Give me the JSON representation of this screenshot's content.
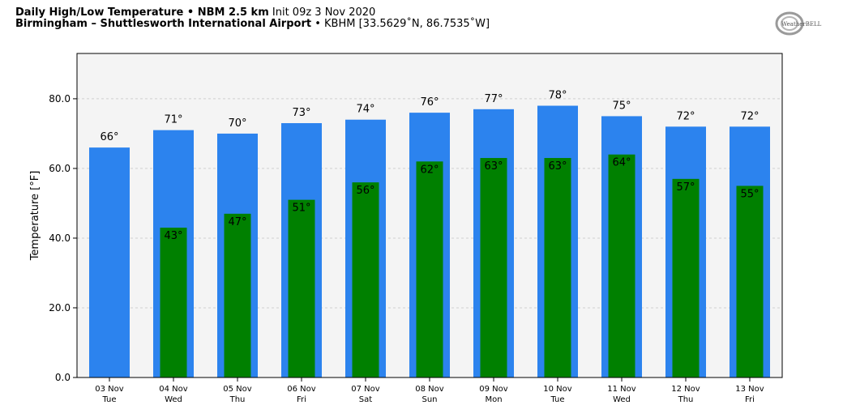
{
  "header": {
    "line1_bold": "Daily High/Low Temperature • NBM 2.5 km",
    "line1_init": "Init 09z 3 Nov 2020",
    "line2_bold": "Birmingham – Shuttlesworth International Airport",
    "line2_rest": "• KBHM [33.5629˚N, 86.7535˚W]"
  },
  "logo": {
    "text": "WeatherBELL",
    "icon": "weatherbell-logo-icon"
  },
  "colors": {
    "high": "#2c83ee",
    "low": "#008000",
    "plot_bg": "#f4f4f4",
    "grid": "#cfcfcf"
  },
  "chart_data": {
    "type": "bar",
    "categories": [
      {
        "date": "03 Nov",
        "day": "Tue"
      },
      {
        "date": "04 Nov",
        "day": "Wed"
      },
      {
        "date": "05 Nov",
        "day": "Thu"
      },
      {
        "date": "06 Nov",
        "day": "Fri"
      },
      {
        "date": "07 Nov",
        "day": "Sat"
      },
      {
        "date": "08 Nov",
        "day": "Sun"
      },
      {
        "date": "09 Nov",
        "day": "Mon"
      },
      {
        "date": "10 Nov",
        "day": "Tue"
      },
      {
        "date": "11 Nov",
        "day": "Wed"
      },
      {
        "date": "12 Nov",
        "day": "Thu"
      },
      {
        "date": "13 Nov",
        "day": "Fri"
      }
    ],
    "series": [
      {
        "key": "high",
        "values": [
          66,
          71,
          70,
          73,
          74,
          76,
          77,
          78,
          75,
          72,
          72
        ],
        "labels": [
          "66°",
          "71°",
          "70°",
          "73°",
          "74°",
          "76°",
          "77°",
          "78°",
          "75°",
          "72°",
          "72°"
        ]
      },
      {
        "key": "low",
        "values": [
          null,
          43,
          47,
          51,
          56,
          62,
          63,
          63,
          64,
          57,
          55
        ],
        "labels": [
          "",
          "43°",
          "47°",
          "51°",
          "56°",
          "62°",
          "63°",
          "63°",
          "64°",
          "57°",
          "55°"
        ]
      }
    ],
    "ylabel": "Temperature [°F]",
    "ylim": [
      0,
      93
    ],
    "yticks": [
      0,
      20,
      40,
      60,
      80
    ],
    "ytick_labels": [
      "0.0",
      "20.0",
      "40.0",
      "60.0",
      "80.0"
    ],
    "grid": true
  }
}
